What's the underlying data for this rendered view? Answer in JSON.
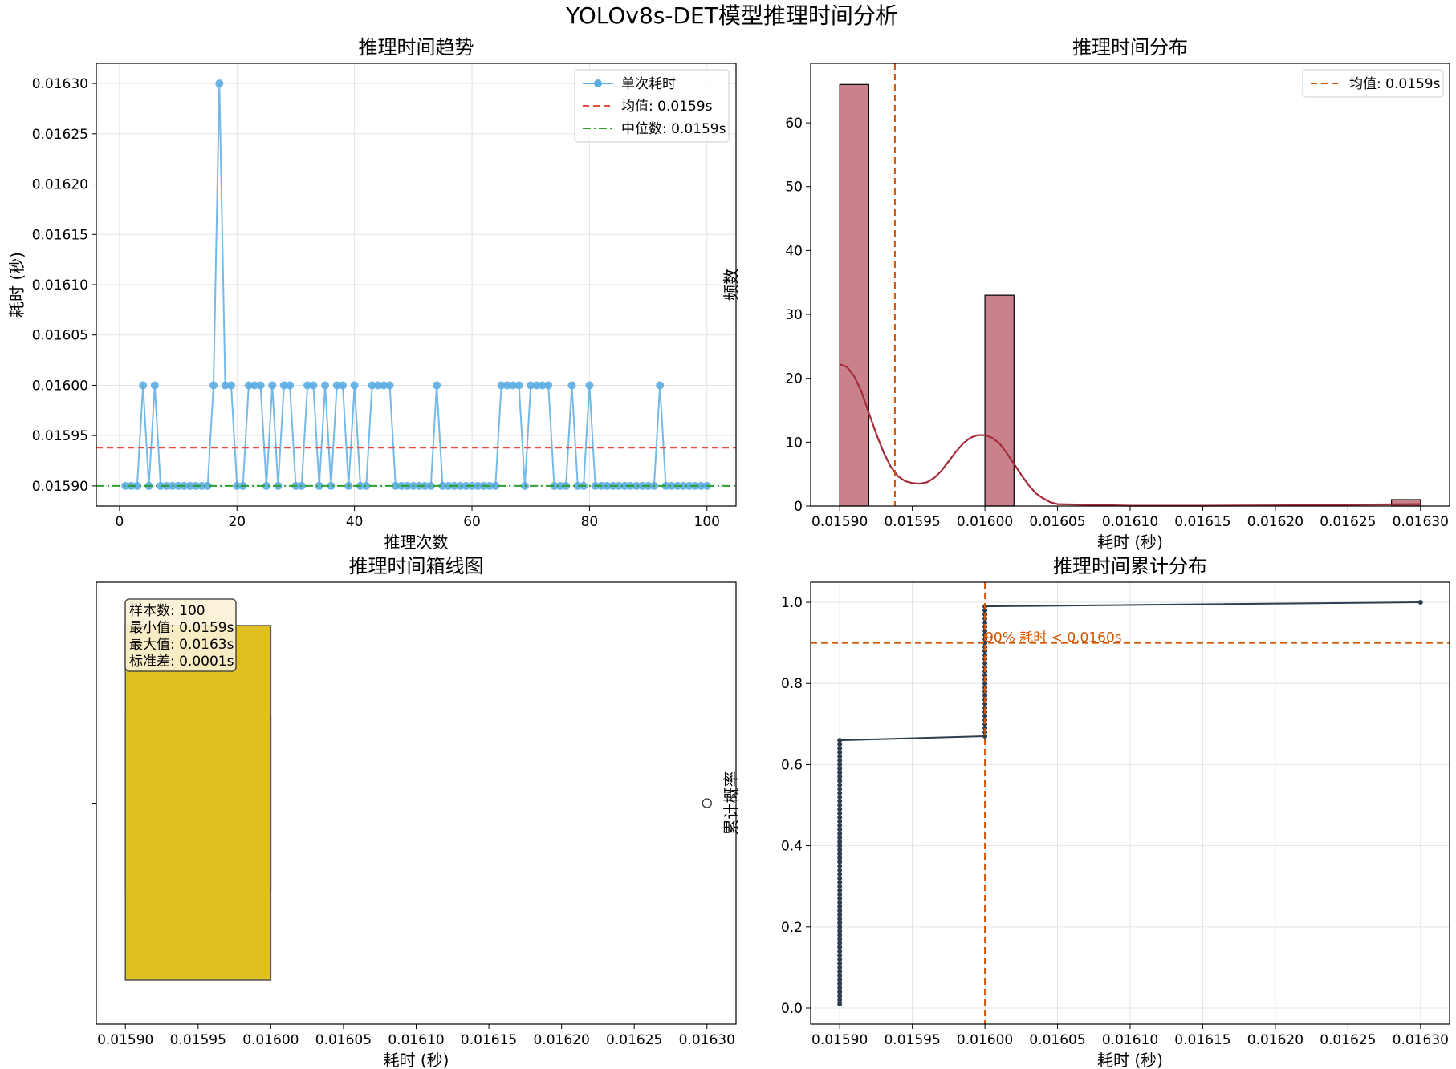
{
  "suptitle": "YOLOv8s-DET模型推理时间分析",
  "colors": {
    "trend": "#5dade2",
    "mean": "#e74c3c",
    "median": "#2ca02c",
    "hist_bar": "#c9828c",
    "kde": "#a52a3a",
    "hist_mean": "#d35400",
    "box_fill": "#e0c020",
    "cdf": "#2c3e50",
    "cdf_ref": "#d35400"
  },
  "chart_data": [
    {
      "id": "trend",
      "type": "line",
      "title": "推理时间趋势",
      "xlabel": "推理次数",
      "ylabel": "耗时 (秒)",
      "xlim": [
        -3.95,
        104.95
      ],
      "ylim": [
        0.01588,
        0.01632
      ],
      "xticks": [
        0,
        20,
        40,
        60,
        80,
        100
      ],
      "xtick_labels": [
        "0",
        "20",
        "40",
        "60",
        "80",
        "100"
      ],
      "yticks": [
        0.0159,
        0.01595,
        0.016,
        0.01605,
        0.0161,
        0.01615,
        0.0162,
        0.01625,
        0.0163
      ],
      "ytick_labels": [
        "0.01590",
        "0.01595",
        "0.01600",
        "0.01605",
        "0.01610",
        "0.01615",
        "0.01620",
        "0.01625",
        "0.01630"
      ],
      "grid": true,
      "legend_position": "top-right",
      "legend": [
        "单次耗时",
        "均值: 0.0159s",
        "中位数: 0.0159s"
      ],
      "mean": 0.015938,
      "median": 0.0159,
      "series": [
        {
          "name": "单次耗时",
          "x": [
            1,
            2,
            3,
            4,
            5,
            6,
            7,
            8,
            9,
            10,
            11,
            12,
            13,
            14,
            15,
            16,
            17,
            18,
            19,
            20,
            21,
            22,
            23,
            24,
            25,
            26,
            27,
            28,
            29,
            30,
            31,
            32,
            33,
            34,
            35,
            36,
            37,
            38,
            39,
            40,
            41,
            42,
            43,
            44,
            45,
            46,
            47,
            48,
            49,
            50,
            51,
            52,
            53,
            54,
            55,
            56,
            57,
            58,
            59,
            60,
            61,
            62,
            63,
            64,
            65,
            66,
            67,
            68,
            69,
            70,
            71,
            72,
            73,
            74,
            75,
            76,
            77,
            78,
            79,
            80,
            81,
            82,
            83,
            84,
            85,
            86,
            87,
            88,
            89,
            90,
            91,
            92,
            93,
            94,
            95,
            96,
            97,
            98,
            99,
            100
          ],
          "values": [
            0.0159,
            0.0159,
            0.0159,
            0.016,
            0.0159,
            0.016,
            0.0159,
            0.0159,
            0.0159,
            0.0159,
            0.0159,
            0.0159,
            0.0159,
            0.0159,
            0.0159,
            0.016,
            0.0163,
            0.016,
            0.016,
            0.0159,
            0.0159,
            0.016,
            0.016,
            0.016,
            0.0159,
            0.016,
            0.0159,
            0.016,
            0.016,
            0.0159,
            0.0159,
            0.016,
            0.016,
            0.0159,
            0.016,
            0.0159,
            0.016,
            0.016,
            0.0159,
            0.016,
            0.0159,
            0.0159,
            0.016,
            0.016,
            0.016,
            0.016,
            0.0159,
            0.0159,
            0.0159,
            0.0159,
            0.0159,
            0.0159,
            0.0159,
            0.016,
            0.0159,
            0.0159,
            0.0159,
            0.0159,
            0.0159,
            0.0159,
            0.0159,
            0.0159,
            0.0159,
            0.0159,
            0.016,
            0.016,
            0.016,
            0.016,
            0.0159,
            0.016,
            0.016,
            0.016,
            0.016,
            0.0159,
            0.0159,
            0.0159,
            0.016,
            0.0159,
            0.0159,
            0.016,
            0.0159,
            0.0159,
            0.0159,
            0.0159,
            0.0159,
            0.0159,
            0.0159,
            0.0159,
            0.0159,
            0.0159,
            0.0159,
            0.016,
            0.0159,
            0.0159,
            0.0159,
            0.0159,
            0.0159,
            0.0159,
            0.0159,
            0.0159
          ]
        }
      ]
    },
    {
      "id": "hist",
      "type": "bar",
      "title": "推理时间分布",
      "xlabel": "耗时 (秒)",
      "ylabel": "频数",
      "xlim": [
        0.01588,
        0.01632
      ],
      "ylim": [
        0,
        69.3
      ],
      "xticks": [
        0.0159,
        0.01595,
        0.016,
        0.01605,
        0.0161,
        0.01615,
        0.0162,
        0.01625,
        0.0163
      ],
      "xtick_labels": [
        "0.01590",
        "0.01595",
        "0.01600",
        "0.01605",
        "0.01610",
        "0.01615",
        "0.01620",
        "0.01625",
        "0.01630"
      ],
      "yticks": [
        0,
        10,
        20,
        30,
        40,
        50,
        60
      ],
      "ytick_labels": [
        "0",
        "10",
        "20",
        "30",
        "40",
        "50",
        "60"
      ],
      "grid": false,
      "legend_position": "top-right",
      "legend": [
        "均值: 0.0159s"
      ],
      "mean": 0.015938,
      "bins": [
        {
          "x0": 0.0159,
          "x1": 0.01592,
          "count": 66
        },
        {
          "x0": 0.016,
          "x1": 0.01602,
          "count": 33
        },
        {
          "x0": 0.01628,
          "x1": 0.0163,
          "count": 1
        }
      ],
      "kde": {
        "x": [
          0.0159,
          0.015905,
          0.01591,
          0.015915,
          0.01592,
          0.015925,
          0.01593,
          0.015935,
          0.01594,
          0.015945,
          0.01595,
          0.015955,
          0.01596,
          0.015965,
          0.01597,
          0.015975,
          0.01598,
          0.015985,
          0.01599,
          0.015995,
          0.016,
          0.016005,
          0.01601,
          0.016015,
          0.01602,
          0.016025,
          0.01603,
          0.016035,
          0.01604,
          0.016045,
          0.01605,
          0.0161,
          0.01615,
          0.0162,
          0.01625,
          0.0163
        ],
        "values": [
          22.2,
          21.8,
          20.3,
          17.9,
          14.6,
          11.4,
          8.5,
          6.2,
          4.7,
          3.9,
          3.6,
          3.5,
          3.7,
          4.4,
          5.5,
          7.0,
          8.5,
          9.8,
          10.7,
          11.1,
          11.1,
          10.7,
          9.8,
          8.3,
          6.6,
          4.9,
          3.3,
          2.0,
          1.2,
          0.6,
          0.3,
          0.05,
          0.05,
          0.1,
          0.2,
          0.3
        ]
      }
    },
    {
      "id": "box",
      "type": "box",
      "title": "推理时间箱线图",
      "xlabel": "耗时 (秒)",
      "xlim": [
        0.01588,
        0.01632
      ],
      "xticks": [
        0.0159,
        0.01595,
        0.016,
        0.01605,
        0.0161,
        0.01615,
        0.0162,
        0.01625,
        0.0163
      ],
      "xtick_labels": [
        "0.01590",
        "0.01595",
        "0.01600",
        "0.01605",
        "0.01610",
        "0.01615",
        "0.01620",
        "0.01625",
        "0.01630"
      ],
      "grid": false,
      "q1": 0.0159,
      "median": 0.0159,
      "q3": 0.016,
      "whisker_low": 0.0159,
      "whisker_high": 0.016,
      "outliers": [
        0.0163
      ],
      "stats_lines": [
        "样本数: 100",
        "最小值: 0.0159s",
        "最大值: 0.0163s",
        "标准差: 0.0001s"
      ]
    },
    {
      "id": "cdf",
      "type": "line",
      "title": "推理时间累计分布",
      "xlabel": "耗时 (秒)",
      "ylabel": "累计概率",
      "xlim": [
        0.01588,
        0.01632
      ],
      "ylim": [
        -0.0395,
        1.0495
      ],
      "xticks": [
        0.0159,
        0.01595,
        0.016,
        0.01605,
        0.0161,
        0.01615,
        0.0162,
        0.01625,
        0.0163
      ],
      "xtick_labels": [
        "0.01590",
        "0.01595",
        "0.01600",
        "0.01605",
        "0.01610",
        "0.01615",
        "0.01620",
        "0.01625",
        "0.01630"
      ],
      "yticks": [
        0,
        0.2,
        0.4,
        0.6,
        0.8,
        1.0
      ],
      "ytick_labels": [
        "0.0",
        "0.2",
        "0.4",
        "0.6",
        "0.8",
        "1.0"
      ],
      "grid": true,
      "hline": 0.9,
      "vline": 0.016,
      "annotation": "90% 耗时 < 0.0160s",
      "groups": [
        {
          "x": 0.0159,
          "count": 66
        },
        {
          "x": 0.016,
          "count": 33
        },
        {
          "x": 0.0163,
          "count": 1
        }
      ],
      "n": 100
    }
  ]
}
